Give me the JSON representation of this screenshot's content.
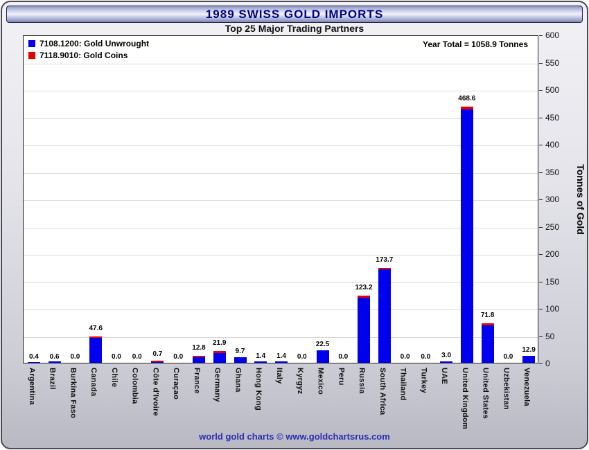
{
  "header": {
    "title": "1989 SWISS GOLD IMPORTS",
    "subtitle": "Top 25 Major Trading Partners"
  },
  "legend": [
    {
      "label": "7108.1200: Gold Unwrought",
      "color": "#0000ee"
    },
    {
      "label": "7118.9010: Gold Coins",
      "color": "#e80000"
    }
  ],
  "annotation": {
    "year_total": "Year Total = 1058.9 Tonnes"
  },
  "footer": {
    "credit": "world gold charts © www.goldchartsrus.com"
  },
  "chart_data": {
    "type": "bar",
    "stacked": true,
    "title": "1989 SWISS GOLD IMPORTS",
    "subtitle": "Top 25 Major Trading Partners",
    "categories": [
      "Argentina",
      "Brazil",
      "Burkina Faso",
      "Canada",
      "Chile",
      "Colombia",
      "Côte d'Ivoire",
      "Curaçao",
      "France",
      "Germany",
      "Ghana",
      "Hong Kong",
      "Italy",
      "Kyrgyz",
      "Mexico",
      "Peru",
      "Russia",
      "South Africa",
      "Thailand",
      "Turkey",
      "UAE",
      "United Kingdom",
      "United States",
      "Uzbekistan",
      "Venezuela"
    ],
    "series": [
      {
        "name": "7108.1200: Gold Unwrought",
        "color": "#0000ee",
        "values": [
          0.4,
          0.6,
          0.0,
          46.1,
          0.0,
          0.0,
          0.3,
          0.0,
          9.8,
          18.4,
          9.7,
          1.4,
          1.4,
          0.0,
          22.5,
          0.0,
          119.2,
          171.2,
          0.0,
          0.0,
          3.0,
          463.6,
          68.3,
          0.0,
          12.9
        ]
      },
      {
        "name": "7118.9010: Gold Coins",
        "color": "#e80000",
        "values": [
          0.0,
          0.0,
          0.0,
          1.5,
          0.0,
          0.0,
          0.4,
          0.0,
          3.0,
          3.5,
          0.0,
          0.0,
          0.0,
          0.0,
          0.0,
          0.0,
          4.0,
          2.5,
          0.0,
          0.0,
          0.0,
          5.0,
          3.5,
          0.0,
          0.0
        ]
      }
    ],
    "totals": [
      0.4,
      0.6,
      0.0,
      47.6,
      0.0,
      0.0,
      0.7,
      0.0,
      12.8,
      21.9,
      9.7,
      1.4,
      1.4,
      0.0,
      22.5,
      0.0,
      123.2,
      173.7,
      0.0,
      0.0,
      3.0,
      468.6,
      71.8,
      0.0,
      12.9
    ],
    "xlabel": "",
    "ylabel": "Tonnes of Gold",
    "ylim": [
      0,
      600
    ],
    "ytick_step": 50,
    "grid": true,
    "legend_position": "top-left",
    "annotation": "Year Total = 1058.9 Tonnes"
  }
}
